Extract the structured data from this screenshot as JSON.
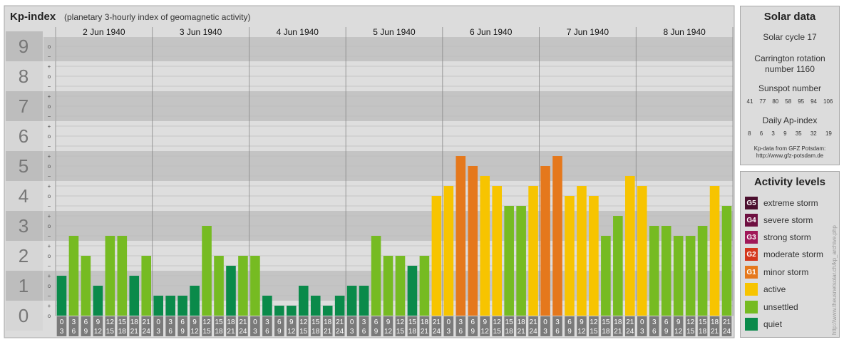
{
  "chart_data": {
    "type": "bar",
    "title": "Kp-index",
    "subtitle": "(planetary 3-hourly index of geomagnetic activity)",
    "y_ticks": [
      "0",
      "1",
      "2",
      "3",
      "4",
      "5",
      "6",
      "7",
      "8",
      "9"
    ],
    "sub_ticks": [
      "o",
      "+",
      "−",
      "o",
      "+",
      "−",
      "o",
      "+",
      "−",
      "o",
      "+",
      "−",
      "o",
      "+",
      "−",
      "o",
      "+",
      "−",
      "o",
      "+",
      "−",
      "o",
      "+",
      "−",
      "o",
      "+",
      "−",
      "o"
    ],
    "ylim": [
      0,
      9
    ],
    "grid": true,
    "days": [
      "2 Jun 1940",
      "3 Jun 1940",
      "4 Jun 1940",
      "5 Jun 1940",
      "6 Jun 1940",
      "7 Jun 1940",
      "8 Jun 1940"
    ],
    "interval_labels": [
      [
        "0",
        "3"
      ],
      [
        "3",
        "6"
      ],
      [
        "6",
        "9"
      ],
      [
        "9",
        "12"
      ],
      [
        "12",
        "15"
      ],
      [
        "15",
        "18"
      ],
      [
        "18",
        "21"
      ],
      [
        "21",
        "24"
      ]
    ],
    "values": [
      [
        1.333,
        2.667,
        2.0,
        1.0,
        2.667,
        2.667,
        1.333,
        2.0
      ],
      [
        0.667,
        0.667,
        0.667,
        1.0,
        3.0,
        2.0,
        1.667,
        2.0
      ],
      [
        2.0,
        0.667,
        0.333,
        0.333,
        1.0,
        0.667,
        0.333,
        0.667
      ],
      [
        1.0,
        1.0,
        2.667,
        2.0,
        2.0,
        1.667,
        2.0,
        4.0
      ],
      [
        4.333,
        5.333,
        5.0,
        4.667,
        4.333,
        3.667,
        3.667,
        4.333
      ],
      [
        5.0,
        5.333,
        4.0,
        4.333,
        4.0,
        2.667,
        3.333,
        4.667
      ],
      [
        4.333,
        3.0,
        3.0,
        2.667,
        2.667,
        3.0,
        4.333,
        3.667
      ]
    ]
  },
  "solar": {
    "title": "Solar data",
    "cycle": "Solar cycle 17",
    "carrington_1": "Carrington rotation",
    "carrington_2": "number 1160",
    "sunspot_title": "Sunspot number",
    "sunspots": [
      "41",
      "77",
      "80",
      "58",
      "95",
      "94",
      "106"
    ],
    "ap_title": "Daily Ap-index",
    "ap": [
      "8",
      "6",
      "3",
      "9",
      "35",
      "32",
      "19"
    ],
    "credit_1": "Kp-data from GFZ Potsdam:",
    "credit_2": "http://www.gfz-potsdam.de"
  },
  "activity": {
    "title": "Activity levels",
    "levels": [
      {
        "code": "G5",
        "label": "extreme storm",
        "color": "#4b0f2e"
      },
      {
        "code": "G4",
        "label": "severe storm",
        "color": "#6e1040"
      },
      {
        "code": "G3",
        "label": "strong storm",
        "color": "#a01858"
      },
      {
        "code": "G2",
        "label": "moderate storm",
        "color": "#d4371c"
      },
      {
        "code": "G1",
        "label": "minor storm",
        "color": "#e5781c"
      },
      {
        "code": "",
        "label": "active",
        "color": "#f7c400"
      },
      {
        "code": "",
        "label": "unsettled",
        "color": "#76bb22"
      },
      {
        "code": "",
        "label": "quiet",
        "color": "#0a8a4a"
      }
    ]
  },
  "watermark": "http://www.theusnetsolar.ch/kp_archive.php"
}
